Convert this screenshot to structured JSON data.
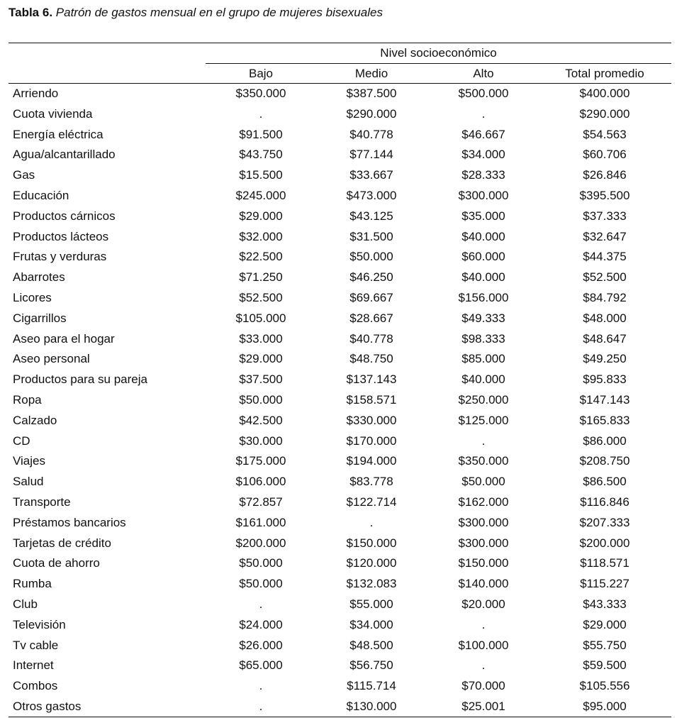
{
  "title": {
    "label": "Tabla 6.",
    "caption": "Patrón de gastos mensual en el grupo de mujeres bisexuales"
  },
  "table": {
    "group_header": "Nivel socioeconómico",
    "columns": [
      "Bajo",
      "Medio",
      "Alto",
      "Total promedio"
    ],
    "rows": [
      {
        "item": "Arriendo",
        "values": [
          "$350.000",
          "$387.500",
          "$500.000",
          "$400.000"
        ]
      },
      {
        "item": "Cuota vivienda",
        "values": [
          ".",
          "$290.000",
          ".",
          "$290.000"
        ]
      },
      {
        "item": "Energía eléctrica",
        "values": [
          "$91.500",
          "$40.778",
          "$46.667",
          "$54.563"
        ]
      },
      {
        "item": "Agua/alcantarillado",
        "values": [
          "$43.750",
          "$77.144",
          "$34.000",
          "$60.706"
        ]
      },
      {
        "item": "Gas",
        "values": [
          "$15.500",
          "$33.667",
          "$28.333",
          "$26.846"
        ]
      },
      {
        "item": "Educación",
        "values": [
          "$245.000",
          "$473.000",
          "$300.000",
          "$395.500"
        ]
      },
      {
        "item": "Productos cárnicos",
        "values": [
          "$29.000",
          "$43.125",
          "$35.000",
          "$37.333"
        ]
      },
      {
        "item": "Productos lácteos",
        "values": [
          "$32.000",
          "$31.500",
          "$40.000",
          "$32.647"
        ]
      },
      {
        "item": "Frutas y verduras",
        "values": [
          "$22.500",
          "$50.000",
          "$60.000",
          "$44.375"
        ]
      },
      {
        "item": "Abarrotes",
        "values": [
          "$71.250",
          "$46.250",
          "$40.000",
          "$52.500"
        ]
      },
      {
        "item": "Licores",
        "values": [
          "$52.500",
          "$69.667",
          "$156.000",
          "$84.792"
        ]
      },
      {
        "item": "Cigarrillos",
        "values": [
          "$105.000",
          "$28.667",
          "$49.333",
          "$48.000"
        ]
      },
      {
        "item": "Aseo para el hogar",
        "values": [
          "$33.000",
          "$40.778",
          "$98.333",
          "$48.647"
        ]
      },
      {
        "item": "Aseo personal",
        "values": [
          "$29.000",
          "$48.750",
          "$85.000",
          "$49.250"
        ]
      },
      {
        "item": "Productos para su pareja",
        "values": [
          "$37.500",
          "$137.143",
          "$40.000",
          "$95.833"
        ]
      },
      {
        "item": "Ropa",
        "values": [
          "$50.000",
          "$158.571",
          "$250.000",
          "$147.143"
        ]
      },
      {
        "item": "Calzado",
        "values": [
          "$42.500",
          "$330.000",
          "$125.000",
          "$165.833"
        ]
      },
      {
        "item": "CD",
        "values": [
          "$30.000",
          "$170.000",
          ".",
          "$86.000"
        ]
      },
      {
        "item": "Viajes",
        "values": [
          "$175.000",
          "$194.000",
          "$350.000",
          "$208.750"
        ]
      },
      {
        "item": "Salud",
        "values": [
          "$106.000",
          "$83.778",
          "$50.000",
          "$86.500"
        ]
      },
      {
        "item": "Transporte",
        "values": [
          "$72.857",
          "$122.714",
          "$162.000",
          "$116.846"
        ]
      },
      {
        "item": "Préstamos bancarios",
        "values": [
          "$161.000",
          ".",
          "$300.000",
          "$207.333"
        ]
      },
      {
        "item": "Tarjetas de crédito",
        "values": [
          "$200.000",
          "$150.000",
          "$300.000",
          "$200.000"
        ]
      },
      {
        "item": "Cuota de ahorro",
        "values": [
          "$50.000",
          "$120.000",
          "$150.000",
          "$118.571"
        ]
      },
      {
        "item": "Rumba",
        "values": [
          "$50.000",
          "$132.083",
          "$140.000",
          "$115.227"
        ]
      },
      {
        "item": "Club",
        "values": [
          ".",
          "$55.000",
          "$20.000",
          "$43.333"
        ]
      },
      {
        "item": "Televisión",
        "values": [
          "$24.000",
          "$34.000",
          ".",
          "$29.000"
        ]
      },
      {
        "item": "Tv cable",
        "values": [
          "$26.000",
          "$48.500",
          "$100.000",
          "$55.750"
        ]
      },
      {
        "item": "Internet",
        "values": [
          "$65.000",
          "$56.750",
          ".",
          "$59.500"
        ]
      },
      {
        "item": "Combos",
        "values": [
          ".",
          "$115.714",
          "$70.000",
          "$105.556"
        ]
      },
      {
        "item": "Otros gastos",
        "values": [
          ".",
          "$130.000",
          "$25.001",
          "$95.000"
        ]
      }
    ]
  }
}
